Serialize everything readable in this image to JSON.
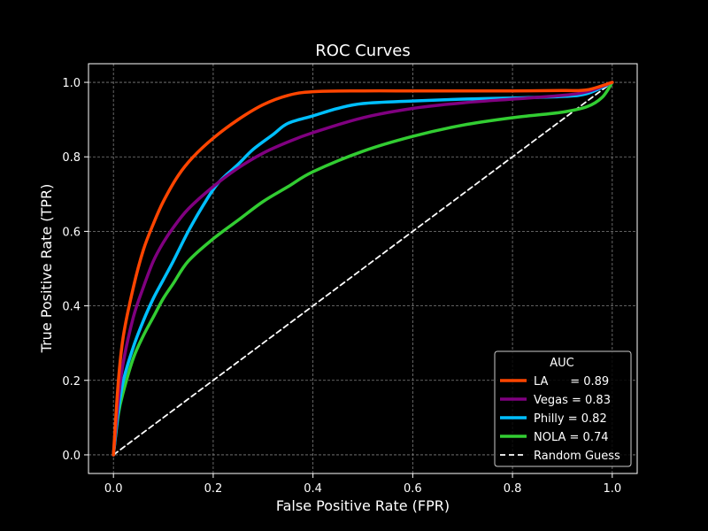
{
  "chart_data": {
    "type": "line",
    "title": "ROC Curves",
    "xlabel": "False Positive Rate (FPR)",
    "ylabel": "True Positive Rate (TPR)",
    "xlim": [
      -0.05,
      1.05
    ],
    "ylim": [
      -0.05,
      1.05
    ],
    "xticks": [
      0.0,
      0.2,
      0.4,
      0.6,
      0.8,
      1.0
    ],
    "yticks": [
      0.0,
      0.2,
      0.4,
      0.6,
      0.8,
      1.0
    ],
    "xtick_labels": [
      "0.0",
      "0.2",
      "0.4",
      "0.6",
      "0.8",
      "1.0"
    ],
    "ytick_labels": [
      "0.0",
      "0.2",
      "0.4",
      "0.6",
      "0.8",
      "1.0"
    ],
    "grid": true,
    "legend": {
      "title": "AUC",
      "placement": "lower-right"
    },
    "series": [
      {
        "name": "LA",
        "label": "LA      = 0.89",
        "auc": 0.89,
        "color": "#ff4500",
        "x": [
          0.0,
          0.01,
          0.02,
          0.04,
          0.06,
          0.08,
          0.1,
          0.13,
          0.16,
          0.2,
          0.25,
          0.3,
          0.35,
          0.4,
          0.5,
          0.6,
          0.7,
          0.8,
          0.9,
          0.95,
          1.0
        ],
        "y": [
          0.0,
          0.2,
          0.32,
          0.45,
          0.55,
          0.62,
          0.68,
          0.75,
          0.8,
          0.85,
          0.9,
          0.94,
          0.965,
          0.975,
          0.977,
          0.977,
          0.977,
          0.977,
          0.978,
          0.98,
          1.0
        ]
      },
      {
        "name": "Vegas",
        "label": "Vegas = 0.83",
        "auc": 0.83,
        "color": "#800080",
        "x": [
          0.0,
          0.01,
          0.02,
          0.04,
          0.06,
          0.08,
          0.1,
          0.12,
          0.15,
          0.2,
          0.25,
          0.3,
          0.35,
          0.4,
          0.5,
          0.6,
          0.7,
          0.8,
          0.9,
          0.95,
          1.0
        ],
        "y": [
          0.0,
          0.15,
          0.25,
          0.37,
          0.45,
          0.52,
          0.57,
          0.61,
          0.66,
          0.72,
          0.77,
          0.81,
          0.84,
          0.865,
          0.905,
          0.93,
          0.945,
          0.955,
          0.965,
          0.975,
          1.0
        ]
      },
      {
        "name": "Philly",
        "label": "Philly = 0.82",
        "auc": 0.82,
        "color": "#00bfff",
        "x": [
          0.0,
          0.01,
          0.02,
          0.04,
          0.06,
          0.08,
          0.1,
          0.12,
          0.15,
          0.18,
          0.21,
          0.25,
          0.28,
          0.32,
          0.35,
          0.4,
          0.45,
          0.5,
          0.6,
          0.7,
          0.8,
          0.9,
          0.95,
          1.0
        ],
        "y": [
          0.0,
          0.12,
          0.2,
          0.29,
          0.36,
          0.42,
          0.47,
          0.52,
          0.6,
          0.67,
          0.73,
          0.78,
          0.82,
          0.86,
          0.89,
          0.91,
          0.93,
          0.943,
          0.95,
          0.955,
          0.958,
          0.962,
          0.97,
          1.0
        ]
      },
      {
        "name": "NOLA",
        "label": "NOLA = 0.74",
        "auc": 0.74,
        "color": "#32cd32",
        "x": [
          0.0,
          0.01,
          0.02,
          0.04,
          0.06,
          0.08,
          0.1,
          0.12,
          0.15,
          0.2,
          0.25,
          0.3,
          0.35,
          0.4,
          0.5,
          0.6,
          0.7,
          0.8,
          0.9,
          0.95,
          0.98,
          1.0
        ],
        "y": [
          0.0,
          0.11,
          0.17,
          0.26,
          0.32,
          0.37,
          0.42,
          0.46,
          0.52,
          0.58,
          0.63,
          0.68,
          0.72,
          0.76,
          0.815,
          0.855,
          0.885,
          0.905,
          0.92,
          0.935,
          0.96,
          1.0
        ]
      },
      {
        "name": "Random Guess",
        "label": "Random Guess",
        "color": "#ffffff",
        "dashed": true,
        "x": [
          0.0,
          1.0
        ],
        "y": [
          0.0,
          1.0
        ]
      }
    ]
  }
}
